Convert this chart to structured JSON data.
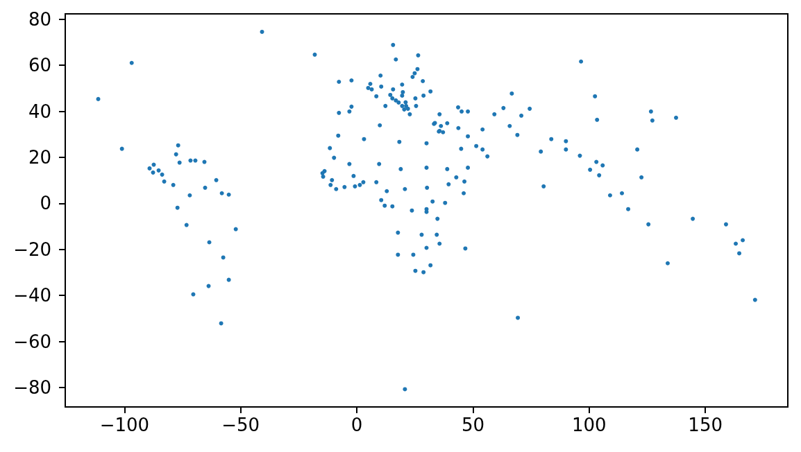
{
  "chart_data": {
    "type": "scatter",
    "color": "#1f77b4",
    "marker": "circle",
    "x": [
      -40.8,
      -96.9,
      -111.3,
      -101.1,
      -76.9,
      -77.8,
      -76.3,
      -71.6,
      -69.5,
      -65.6,
      -87.4,
      -89.2,
      -87.7,
      -85.3,
      -83.8,
      -82.9,
      -79.0,
      -60.5,
      -65.3,
      -71.9,
      -58.1,
      -55.1,
      -77.2,
      -73.3,
      -52.1,
      -63.5,
      -57.5,
      -55.1,
      -63.8,
      -70.4,
      -58.4,
      15.6,
      -18.1,
      26.4,
      16.8,
      26.1,
      24.9,
      24.0,
      10.2,
      -7.7,
      -2.3,
      28.4,
      5.8,
      4.9,
      6.4,
      10.5,
      15.6,
      19.5,
      19.8,
      19.5,
      14.4,
      8.4,
      15.3,
      16.8,
      18.0,
      21.0,
      19.5,
      21.2,
      20.4,
      22.0,
      22.8,
      25.2,
      25.5,
      28.7,
      31.7,
      12.3,
      -7.7,
      -3.2,
      -2.3,
      9.9,
      35.6,
      43.6,
      45.1,
      47.8,
      59.2,
      63.1,
      33.2,
      33.6,
      36.2,
      38.9,
      35.3,
      35.6,
      37.1,
      43.7,
      54.1,
      47.8,
      -8.0,
      3.1,
      18.3,
      30.0,
      51.4,
      44.9,
      54.1,
      56.2,
      -11.6,
      -9.8,
      -3.2,
      9.6,
      18.9,
      30.0,
      38.9,
      47.8,
      -14.8,
      -13.9,
      -14.5,
      -10.7,
      -11.3,
      -8.9,
      -5.3,
      -1.4,
      -0.8,
      1.3,
      2.8,
      8.4,
      12.9,
      20.7,
      30.2,
      39.5,
      42.8,
      46.3,
      46.0,
      10.5,
      12.0,
      15.3,
      23.7,
      30.0,
      30.0,
      32.6,
      38.0,
      34.7,
      17.7,
      27.9,
      34.4,
      35.6,
      30.0,
      46.7,
      17.7,
      24.3,
      31.7,
      25.2,
      28.7,
      20.7,
      96.5,
      66.7,
      102.5,
      74.4,
      70.8,
      65.8,
      69.1,
      103.4,
      126.6,
      127.2,
      137.4,
      83.7,
      90.0,
      79.2,
      90.0,
      96.0,
      120.7,
      103.1,
      105.8,
      100.4,
      104.3,
      122.5,
      80.4,
      109.0,
      114.1,
      116.8,
      144.6,
      125.5,
      158.9,
      166.1,
      163.1,
      164.6,
      133.8,
      171.4,
      69.3
    ],
    "values": [
      74.5,
      61.0,
      45.3,
      23.7,
      25.2,
      21.3,
      17.7,
      18.6,
      18.6,
      18.0,
      16.8,
      15.2,
      13.4,
      14.3,
      12.5,
      9.5,
      8.0,
      10.1,
      6.8,
      3.5,
      4.4,
      3.8,
      -1.9,
      -9.4,
      -11.2,
      -16.9,
      -23.5,
      -33.2,
      -35.9,
      -39.5,
      -52.1,
      68.8,
      64.6,
      64.3,
      62.5,
      58.3,
      56.5,
      54.9,
      55.5,
      52.8,
      53.4,
      53.1,
      51.9,
      50.1,
      49.5,
      50.7,
      49.5,
      51.6,
      48.3,
      46.8,
      47.1,
      46.5,
      45.6,
      44.7,
      43.8,
      43.9,
      42.3,
      42.3,
      40.8,
      41.1,
      38.7,
      45.6,
      42.3,
      46.8,
      48.6,
      42.3,
      39.3,
      39.9,
      42.0,
      33.9,
      38.7,
      41.7,
      39.9,
      39.9,
      38.7,
      41.4,
      34.5,
      34.9,
      33.6,
      34.8,
      31.2,
      31.5,
      30.9,
      32.7,
      32.1,
      29.1,
      29.4,
      27.9,
      26.7,
      26.1,
      24.9,
      23.7,
      23.4,
      20.4,
      24.0,
      19.8,
      17.1,
      17.1,
      14.9,
      15.5,
      14.9,
      15.5,
      13.1,
      14.0,
      11.6,
      10.1,
      8.0,
      6.2,
      7.1,
      11.9,
      7.4,
      8.0,
      9.2,
      9.2,
      5.3,
      6.2,
      6.8,
      8.3,
      11.3,
      9.5,
      4.4,
      1.4,
      -1.0,
      -1.3,
      -3.1,
      -2.5,
      -3.7,
      0.8,
      0.2,
      -6.7,
      -12.7,
      -13.6,
      -13.6,
      -17.5,
      -19.3,
      -19.6,
      -22.3,
      -22.3,
      -26.9,
      -29.3,
      -29.9,
      -80.7,
      61.6,
      47.7,
      46.5,
      41.1,
      38.1,
      33.6,
      29.7,
      36.3,
      39.9,
      36.0,
      37.2,
      27.9,
      27.0,
      22.5,
      23.4,
      20.7,
      23.4,
      18.0,
      16.5,
      14.6,
      12.2,
      11.3,
      7.4,
      3.5,
      4.4,
      -2.5,
      -6.7,
      -9.1,
      -9.1,
      -16.0,
      -17.5,
      -21.7,
      -26.0,
      -41.9,
      -49.7
    ],
    "xlim": [
      -125.5,
      185.5
    ],
    "ylim": [
      -88.4,
      82.3
    ],
    "xticks": [
      {
        "value": -100,
        "label": "−100"
      },
      {
        "value": -50,
        "label": "−50"
      },
      0,
      50,
      100,
      150
    ],
    "yticks": [
      {
        "value": -80,
        "label": "−80"
      },
      {
        "value": -60,
        "label": "−60"
      },
      {
        "value": -40,
        "label": "−40"
      },
      {
        "value": -20,
        "label": "−20"
      },
      0,
      20,
      40,
      60,
      80
    ]
  }
}
